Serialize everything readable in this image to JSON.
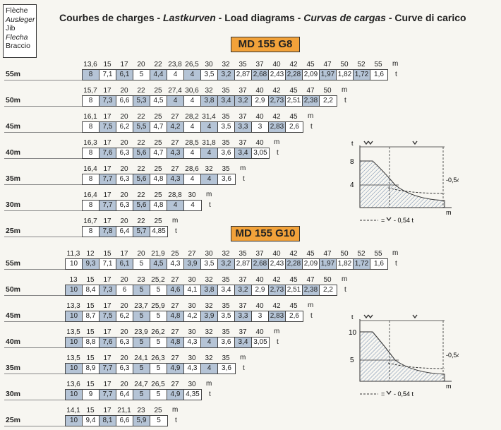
{
  "labels": {
    "legend": [
      "Flèche",
      "Ausleger",
      "Jib",
      "Flecha",
      "Braccio"
    ],
    "title_parts": [
      "Courbes de charges - ",
      "Lastkurven",
      " - Load diagrams - ",
      "Curvas de cargas",
      " - Curve di carico"
    ],
    "unit_m": "m",
    "unit_t": "t"
  },
  "colors": {
    "badge": "#f2a23a",
    "shade": "#b5c4d6"
  },
  "sections": [
    {
      "name": "MD 155  G8",
      "rows": [
        {
          "boom": "55m",
          "radii": [
            "13,6",
            "15",
            "17",
            "20",
            "22",
            "23,8",
            "26,5",
            "30",
            "32",
            "35",
            "37",
            "40",
            "42",
            "45",
            "47",
            "50",
            "52",
            "55"
          ],
          "loads": [
            "8",
            "7,1",
            "6,1",
            "5",
            "4,4",
            "4",
            "4",
            "3,5",
            "3,2",
            "2,87",
            "2,68",
            "2,43",
            "2,28",
            "2,09",
            "1,97",
            "1,82",
            "1,72",
            "1,6"
          ],
          "shaded": [
            0,
            2,
            4,
            6,
            8,
            10,
            12,
            14,
            16
          ]
        },
        {
          "boom": "50m",
          "radii": [
            "15,7",
            "17",
            "20",
            "22",
            "25",
            "27,4",
            "30,6",
            "32",
            "35",
            "37",
            "40",
            "42",
            "45",
            "47",
            "50"
          ],
          "loads": [
            "8",
            "7,3",
            "6,6",
            "5,3",
            "4,5",
            "4",
            "4",
            "3,8",
            "3,4",
            "3,2",
            "2,9",
            "2,73",
            "2,51",
            "2,38",
            "2,2"
          ],
          "shaded": [
            1,
            3,
            5,
            7,
            8,
            9,
            11,
            13
          ]
        },
        {
          "boom": "45m",
          "radii": [
            "16,1",
            "17",
            "20",
            "22",
            "25",
            "27",
            "28,2",
            "31,4",
            "35",
            "37",
            "40",
            "42",
            "45"
          ],
          "loads": [
            "8",
            "7,5",
            "6,2",
            "5,5",
            "4,7",
            "4,2",
            "4",
            "4",
            "3,5",
            "3,3",
            "3",
            "2,83",
            "2,6"
          ],
          "shaded": [
            1,
            3,
            5,
            7,
            9,
            11
          ]
        },
        {
          "boom": "40m",
          "radii": [
            "16,3",
            "17",
            "20",
            "22",
            "25",
            "27",
            "28,5",
            "31,8",
            "35",
            "37",
            "40"
          ],
          "loads": [
            "8",
            "7,6",
            "6,3",
            "5,6",
            "4,7",
            "4,3",
            "4",
            "4",
            "3,6",
            "3,4",
            "3,05"
          ],
          "shaded": [
            1,
            3,
            5,
            7,
            9
          ]
        },
        {
          "boom": "35m",
          "radii": [
            "16,4",
            "17",
            "20",
            "22",
            "25",
            "27",
            "28,6",
            "32",
            "35"
          ],
          "loads": [
            "8",
            "7,7",
            "6,3",
            "5,6",
            "4,8",
            "4,3",
            "4",
            "4",
            "3,6"
          ],
          "shaded": [
            1,
            3,
            5,
            7
          ]
        },
        {
          "boom": "30m",
          "radii": [
            "16,4",
            "17",
            "20",
            "22",
            "25",
            "28,8",
            "30"
          ],
          "loads": [
            "8",
            "7,7",
            "6,3",
            "5,6",
            "4,8",
            "4",
            "4"
          ],
          "shaded": [
            1,
            3,
            5
          ]
        },
        {
          "boom": "25m",
          "radii": [
            "16,7",
            "17",
            "20",
            "22",
            "25"
          ],
          "loads": [
            "8",
            "7,8",
            "6,4",
            "5,7",
            "4,85"
          ],
          "shaded": [
            1,
            3
          ]
        }
      ]
    },
    {
      "name": "MD 155 G10",
      "rows": [
        {
          "boom": "55m",
          "radii": [
            "11,3",
            "12",
            "15",
            "17",
            "20",
            "21,9",
            "25",
            "27",
            "30",
            "32",
            "35",
            "37",
            "40",
            "42",
            "45",
            "47",
            "50",
            "52",
            "55"
          ],
          "loads": [
            "10",
            "9,3",
            "7,1",
            "6,1",
            "5",
            "4,5",
            "4,3",
            "3,9",
            "3,5",
            "3,2",
            "2,87",
            "2,68",
            "2,43",
            "2,28",
            "2,09",
            "1,97",
            "1,82",
            "1,72",
            "1,6"
          ],
          "shaded": [
            1,
            3,
            5,
            7,
            9,
            11,
            13,
            15,
            17
          ]
        },
        {
          "boom": "50m",
          "radii": [
            "13",
            "15",
            "17",
            "20",
            "23",
            "25,2",
            "27",
            "30",
            "32",
            "35",
            "37",
            "40",
            "42",
            "45",
            "47",
            "50"
          ],
          "loads": [
            "10",
            "8,4",
            "7,3",
            "6",
            "5",
            "5",
            "4,6",
            "4,1",
            "3,8",
            "3,4",
            "3,2",
            "2,9",
            "2,73",
            "2,51",
            "2,38",
            "2,2"
          ],
          "shaded": [
            0,
            2,
            4,
            6,
            8,
            10,
            12,
            14
          ]
        },
        {
          "boom": "45m",
          "radii": [
            "13,3",
            "15",
            "17",
            "20",
            "23,7",
            "25,9",
            "27",
            "30",
            "32",
            "35",
            "37",
            "40",
            "42",
            "45"
          ],
          "loads": [
            "10",
            "8,7",
            "7,5",
            "6,2",
            "5",
            "5",
            "4,8",
            "4,2",
            "3,9",
            "3,5",
            "3,3",
            "3",
            "2,83",
            "2,6"
          ],
          "shaded": [
            0,
            2,
            4,
            6,
            8,
            10,
            12
          ]
        },
        {
          "boom": "40m",
          "radii": [
            "13,5",
            "15",
            "17",
            "20",
            "23,9",
            "26,2",
            "27",
            "30",
            "32",
            "35",
            "37",
            "40"
          ],
          "loads": [
            "10",
            "8,8",
            "7,6",
            "6,3",
            "5",
            "5",
            "4,8",
            "4,3",
            "4",
            "3,6",
            "3,4",
            "3,05"
          ],
          "shaded": [
            0,
            2,
            4,
            6,
            8,
            10
          ]
        },
        {
          "boom": "35m",
          "radii": [
            "13,5",
            "15",
            "17",
            "20",
            "24,1",
            "26,3",
            "27",
            "30",
            "32",
            "35"
          ],
          "loads": [
            "10",
            "8,9",
            "7,7",
            "6,3",
            "5",
            "5",
            "4,9",
            "4,3",
            "4",
            "3,6"
          ],
          "shaded": [
            0,
            2,
            4,
            6,
            8
          ]
        },
        {
          "boom": "30m",
          "radii": [
            "13,6",
            "15",
            "17",
            "20",
            "24,7",
            "26,5",
            "27",
            "30"
          ],
          "loads": [
            "10",
            "9",
            "7,7",
            "6,4",
            "5",
            "5",
            "4,9",
            "4,35"
          ],
          "shaded": [
            0,
            2,
            4,
            6
          ]
        },
        {
          "boom": "25m",
          "radii": [
            "14,1",
            "15",
            "17",
            "21,1",
            "23",
            "25"
          ],
          "loads": [
            "10",
            "9,4",
            "8,1",
            "6,6",
            "5,9",
            "5"
          ],
          "shaded": [
            0,
            2,
            4
          ]
        }
      ]
    }
  ],
  "diagrams": [
    {
      "ymax": "8",
      "ymid": "4",
      "annot": "-0,54t",
      "legend": "- 0,54 t",
      "xunit": "m",
      "yunit": "t"
    },
    {
      "ymax": "10",
      "ymid": "5",
      "annot": "-0,54t",
      "legend": "- 0,54 t",
      "xunit": "m",
      "yunit": "t"
    }
  ]
}
